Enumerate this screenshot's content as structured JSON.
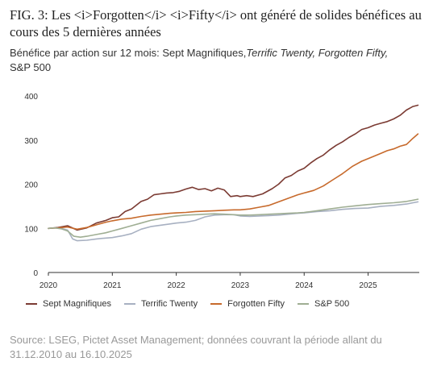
{
  "figure": {
    "title": "FIG. 3: Les <i>Forgotten</i> <i>Fifty</i> ont généré de solides bénéfices au cours des 5 dernières années",
    "subtitle_main": "Bénéfice par action sur 12 mois: Sept Magnifiques,",
    "subtitle_italic": "Terrific Twenty, Forgotten Fifty,",
    "subtitle_end": "S&P 500",
    "source": "Source: LSEG, Pictet Asset Management; données couvrant la période allant du 31.12.2010 au 16.10.2025"
  },
  "chart_data": {
    "type": "line",
    "xlim": [
      2020,
      2025.8
    ],
    "ylim": [
      0,
      400
    ],
    "x_ticks": [
      "2020",
      "2021",
      "2022",
      "2023",
      "2024",
      "2025"
    ],
    "y_ticks": [
      "0",
      "100",
      "200",
      "300",
      "400"
    ],
    "grid": false,
    "legend_position": "bottom",
    "series": [
      {
        "name": "Sept Magnifiques",
        "color": "#7b3b33",
        "x": [
          2020.0,
          2020.15,
          2020.3,
          2020.45,
          2020.6,
          2020.75,
          2020.9,
          2021.0,
          2021.1,
          2021.2,
          2021.3,
          2021.45,
          2021.55,
          2021.65,
          2021.75,
          2021.85,
          2021.95,
          2022.05,
          2022.15,
          2022.25,
          2022.35,
          2022.45,
          2022.55,
          2022.65,
          2022.75,
          2022.85,
          2022.95,
          2023.0,
          2023.1,
          2023.2,
          2023.35,
          2023.5,
          2023.6,
          2023.7,
          2023.8,
          2023.9,
          2024.0,
          2024.1,
          2024.2,
          2024.3,
          2024.4,
          2024.5,
          2024.6,
          2024.7,
          2024.8,
          2024.9,
          2025.0,
          2025.1,
          2025.2,
          2025.3,
          2025.4,
          2025.5,
          2025.6,
          2025.7,
          2025.78
        ],
        "values": [
          100,
          102,
          106,
          96,
          101,
          112,
          118,
          124,
          126,
          138,
          144,
          161,
          166,
          176,
          178,
          180,
          181,
          184,
          189,
          193,
          188,
          190,
          185,
          191,
          187,
          172,
          174,
          172,
          174,
          172,
          178,
          190,
          200,
          214,
          220,
          230,
          236,
          248,
          258,
          266,
          278,
          288,
          296,
          306,
          314,
          324,
          328,
          334,
          338,
          342,
          348,
          356,
          368,
          376,
          379
        ]
      },
      {
        "name": "Terrific Twenty",
        "color": "#a7b0c1",
        "x": [
          2020.0,
          2020.1,
          2020.2,
          2020.3,
          2020.38,
          2020.45,
          2020.6,
          2020.75,
          2020.9,
          2021.0,
          2021.15,
          2021.3,
          2021.45,
          2021.6,
          2021.75,
          2021.9,
          2022.0,
          2022.15,
          2022.3,
          2022.45,
          2022.6,
          2022.75,
          2022.9,
          2023.0,
          2023.15,
          2023.3,
          2023.45,
          2023.6,
          2023.75,
          2023.9,
          2024.0,
          2024.2,
          2024.4,
          2024.6,
          2024.8,
          2025.0,
          2025.2,
          2025.4,
          2025.6,
          2025.78
        ],
        "values": [
          100,
          101,
          100,
          96,
          76,
          72,
          73,
          76,
          78,
          79,
          83,
          88,
          98,
          104,
          107,
          110,
          112,
          114,
          118,
          126,
          130,
          131,
          131,
          128,
          127,
          128,
          129,
          130,
          132,
          134,
          135,
          138,
          140,
          143,
          145,
          146,
          150,
          152,
          155,
          160
        ]
      },
      {
        "name": "Forgotten Fifty",
        "color": "#c76a2c",
        "x": [
          2020.0,
          2020.15,
          2020.3,
          2020.45,
          2020.6,
          2020.75,
          2020.9,
          2021.0,
          2021.15,
          2021.3,
          2021.45,
          2021.6,
          2021.75,
          2021.9,
          2022.0,
          2022.15,
          2022.3,
          2022.45,
          2022.6,
          2022.75,
          2022.9,
          2023.0,
          2023.15,
          2023.3,
          2023.45,
          2023.6,
          2023.75,
          2023.9,
          2024.0,
          2024.15,
          2024.3,
          2024.45,
          2024.6,
          2024.75,
          2024.9,
          2025.0,
          2025.1,
          2025.2,
          2025.3,
          2025.4,
          2025.5,
          2025.6,
          2025.7,
          2025.78
        ],
        "values": [
          100,
          101,
          103,
          98,
          102,
          108,
          114,
          117,
          121,
          123,
          127,
          130,
          132,
          134,
          135,
          136,
          138,
          139,
          140,
          141,
          142,
          142,
          144,
          148,
          152,
          160,
          168,
          176,
          180,
          186,
          196,
          210,
          224,
          240,
          252,
          258,
          264,
          270,
          276,
          280,
          286,
          290,
          304,
          314
        ]
      },
      {
        "name": "S&P 500",
        "color": "#9fae93",
        "x": [
          2020.0,
          2020.1,
          2020.2,
          2020.3,
          2020.4,
          2020.5,
          2020.6,
          2020.75,
          2020.9,
          2021.0,
          2021.15,
          2021.3,
          2021.45,
          2021.6,
          2021.75,
          2021.9,
          2022.0,
          2022.15,
          2022.3,
          2022.45,
          2022.6,
          2022.75,
          2022.9,
          2023.0,
          2023.15,
          2023.3,
          2023.45,
          2023.6,
          2023.75,
          2023.9,
          2024.0,
          2024.2,
          2024.4,
          2024.6,
          2024.8,
          2025.0,
          2025.2,
          2025.4,
          2025.6,
          2025.78
        ],
        "values": [
          100,
          101,
          99,
          94,
          82,
          80,
          82,
          86,
          90,
          94,
          100,
          106,
          112,
          118,
          122,
          126,
          128,
          130,
          131,
          132,
          133,
          132,
          131,
          130,
          130,
          131,
          132,
          133,
          134,
          135,
          136,
          140,
          144,
          148,
          151,
          154,
          156,
          158,
          161,
          166
        ]
      }
    ]
  }
}
